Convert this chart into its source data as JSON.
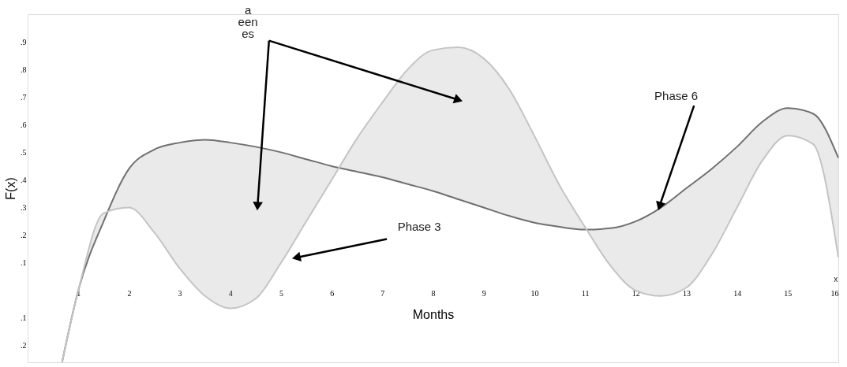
{
  "chart_data": {
    "type": "line",
    "xlabel": "Months",
    "ylabel": "F(x)",
    "x": [
      0.68,
      1,
      1.5,
      2,
      2.5,
      3,
      3.5,
      4,
      4.5,
      5,
      5.5,
      6,
      6.5,
      7,
      7.5,
      8,
      8.5,
      9,
      9.5,
      10,
      10.5,
      11,
      11.5,
      12,
      12.5,
      13,
      13.5,
      14,
      14.5,
      15,
      15.5,
      16
    ],
    "series": [
      {
        "color": "#707070",
        "values": [
          -0.26,
          0,
          0.25,
          0.44,
          0.51,
          0.535,
          0.545,
          0.535,
          0.52,
          0.5,
          0.475,
          0.45,
          0.43,
          0.41,
          0.385,
          0.36,
          0.33,
          0.3,
          0.27,
          0.245,
          0.23,
          0.22,
          0.225,
          0.25,
          0.3,
          0.37,
          0.44,
          0.52,
          0.61,
          0.66,
          0.64,
          0.48
        ],
        "lower": [
          -0.26,
          0,
          0.28,
          0.3,
          0.21,
          0.08,
          -0.02,
          -0.065,
          -0.03,
          0.1,
          0.25,
          0.4,
          0.55,
          0.68,
          0.8,
          0.87,
          0.88,
          0.84,
          0.73,
          0.56,
          0.38,
          0.23,
          0.09,
          0.0,
          -0.02,
          0.01,
          0.13,
          0.3,
          0.47,
          0.56,
          0.53,
          0.12
        ],
        "upper": [
          -0.26,
          0,
          0.25,
          0.44,
          0.51,
          0.535,
          0.545,
          0.535,
          0.52,
          0.5,
          0.475,
          0.45,
          0.43,
          0.41,
          0.385,
          0.36,
          0.33,
          0.3,
          0.27,
          0.245,
          0.23,
          0.22,
          0.225,
          0.25,
          0.3,
          0.37,
          0.44,
          0.52,
          0.61,
          0.66,
          0.64,
          0.48
        ]
      },
      {
        "color": "#c4c4c4",
        "values": [
          -0.26,
          0,
          0.28,
          0.3,
          0.21,
          0.08,
          -0.02,
          -0.065,
          -0.03,
          0.1,
          0.25,
          0.4,
          0.55,
          0.68,
          0.8,
          0.87,
          0.88,
          0.84,
          0.73,
          0.56,
          0.38,
          0.23,
          0.09,
          0.0,
          -0.02,
          0.01,
          0.13,
          0.3,
          0.47,
          0.56,
          0.53,
          0.12
        ]
      }
    ],
    "xlim": [
      0,
      16
    ],
    "ylim": [
      -0.26,
      1.0
    ],
    "xticks": [
      1,
      2,
      3,
      4,
      5,
      6,
      7,
      8,
      9,
      10,
      11,
      12,
      13,
      14,
      15,
      16
    ],
    "yticks": [
      {
        "value": -0.2,
        "label": ".2"
      },
      {
        "value": -0.1,
        "label": ".1"
      },
      {
        "value": 0.1,
        "label": ".1"
      },
      {
        "value": 0.2,
        "label": ".2"
      },
      {
        "value": 0.3,
        "label": ".3"
      },
      {
        "value": 0.4,
        "label": ".4"
      },
      {
        "value": 0.5,
        "label": ".5"
      },
      {
        "value": 0.6,
        "label": ".6"
      },
      {
        "value": 0.7,
        "label": ".7"
      },
      {
        "value": 0.8,
        "label": ".8"
      },
      {
        "value": 0.9,
        "label": ".9"
      }
    ],
    "annotations": [
      {
        "text": "a\neen\nes",
        "x": 4.54,
        "y": 0.31
      },
      {
        "text": "Phase 3",
        "x": 5.33,
        "y": 0.12
      },
      {
        "text": "Phase 6",
        "x": 12.48,
        "y": 0.31
      },
      "x"
    ]
  }
}
